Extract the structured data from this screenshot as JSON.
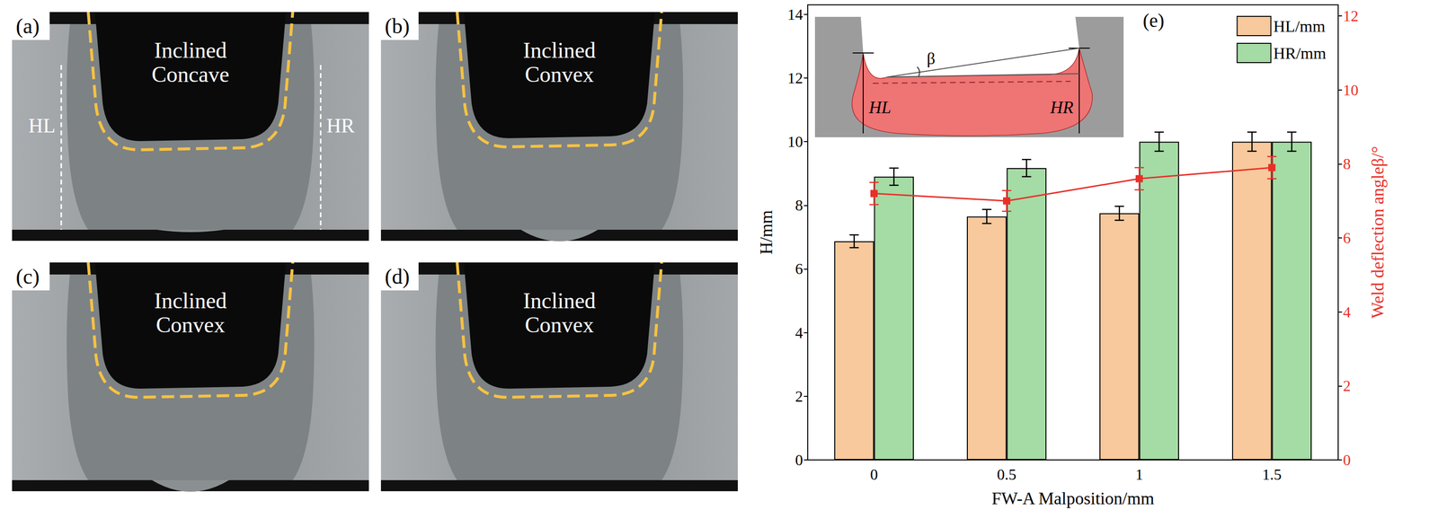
{
  "panels": [
    {
      "label": "(a)",
      "title": "Inclined Concave",
      "markers": [
        "HL",
        "HR"
      ]
    },
    {
      "label": "(b)",
      "title": "Inclined Convex"
    },
    {
      "label": "(c)",
      "title": "Inclined Convex"
    },
    {
      "label": "(d)",
      "title": "Inclined Convex"
    }
  ],
  "inset": {
    "angle_label": "β",
    "left_label": "HL",
    "right_label": "HR"
  },
  "chart_data": {
    "type": "bar",
    "panel_label": "(e)",
    "x_label": "FW-A Malposition/mm",
    "y_label": "H/mm",
    "y2_label": "Weld deflection angleβ/°",
    "categories": [
      "0",
      "0.5",
      "1",
      "1.5"
    ],
    "series": [
      {
        "name": "HL/mm",
        "color": "#f8c99c",
        "values": [
          6.87,
          7.65,
          7.75,
          10.0
        ],
        "errors": [
          0.2,
          0.22,
          0.22,
          0.3
        ]
      },
      {
        "name": "HR/mm",
        "color": "#a5dba4",
        "values": [
          8.9,
          9.17,
          10.0,
          10.0
        ],
        "errors": [
          0.27,
          0.27,
          0.3,
          0.3
        ]
      },
      {
        "type": "line",
        "axis": "y2",
        "color": "#e8302a",
        "marker": "square",
        "values": [
          7.2,
          7.0,
          7.6,
          7.9
        ],
        "errors": [
          0.3,
          0.28,
          0.3,
          0.3
        ]
      }
    ],
    "ylim": [
      0,
      14.3
    ],
    "yticks": [
      0,
      2,
      4,
      6,
      8,
      10,
      12,
      14
    ],
    "y2lim": [
      0,
      12.3
    ],
    "y2ticks": [
      0,
      2,
      4,
      6,
      8,
      10,
      12
    ],
    "legend": "upper right",
    "grid": false
  }
}
